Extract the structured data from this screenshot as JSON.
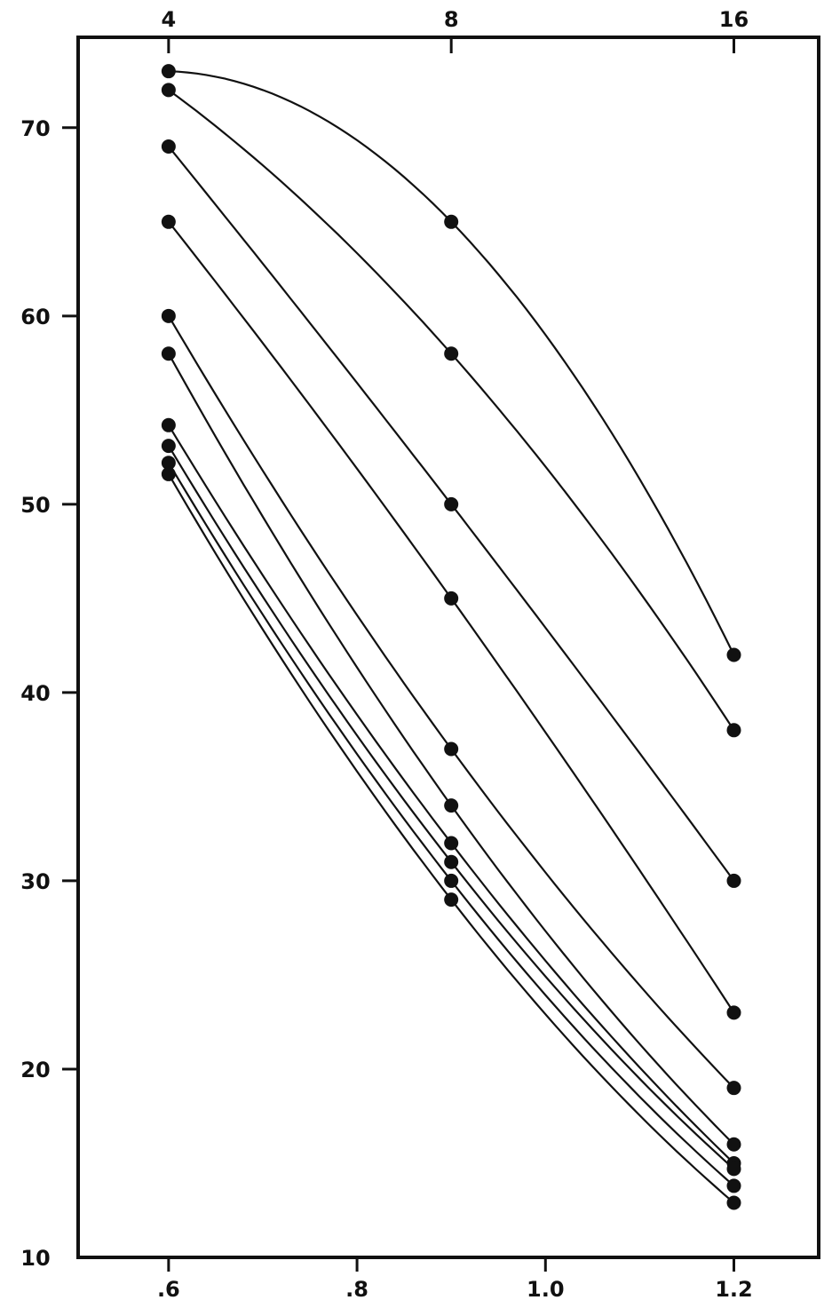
{
  "chart_data": {
    "type": "line",
    "title": "",
    "xlabel": "",
    "ylabel": "",
    "x": [
      0.6,
      0.9,
      1.2
    ],
    "xlim": [
      0.504,
      1.29
    ],
    "ylim": [
      10,
      74.8
    ],
    "x_ticks": [
      0.6,
      0.8,
      1.0,
      1.2
    ],
    "x_tick_labels": [
      ".6",
      ".8",
      "1.0",
      "1.2"
    ],
    "top_ticks": [
      0.6,
      0.9,
      1.2
    ],
    "top_tick_labels": [
      "4",
      "8",
      "16"
    ],
    "y_ticks": [
      10,
      20,
      30,
      40,
      50,
      60,
      70
    ],
    "y_tick_labels": [
      "10",
      "20",
      "30",
      "40",
      "50",
      "60",
      "70"
    ],
    "grid": false,
    "marker": "filled-circle",
    "color": "#111111",
    "series": [
      {
        "values": [
          73,
          65,
          42
        ]
      },
      {
        "values": [
          72,
          58,
          38
        ]
      },
      {
        "values": [
          69,
          50,
          30
        ]
      },
      {
        "values": [
          65,
          45,
          23
        ]
      },
      {
        "values": [
          60,
          37,
          19
        ]
      },
      {
        "values": [
          58,
          34,
          16
        ]
      },
      {
        "values": [
          54.2,
          32,
          15
        ]
      },
      {
        "values": [
          53.1,
          31,
          14.7
        ]
      },
      {
        "values": [
          52.2,
          30,
          13.8
        ]
      },
      {
        "values": [
          51.6,
          29,
          12.9
        ]
      }
    ]
  }
}
